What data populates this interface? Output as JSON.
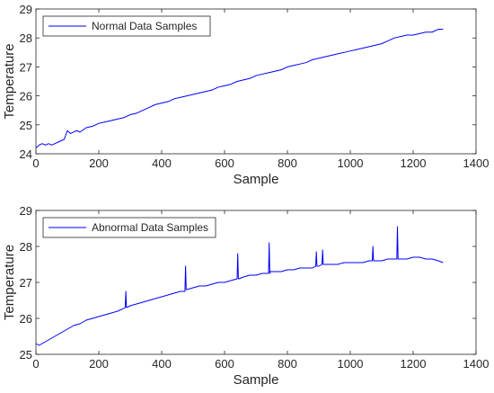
{
  "chart_data": [
    {
      "type": "line",
      "xlabel": "Sample",
      "ylabel": "Temperature",
      "xlim": [
        0,
        1400
      ],
      "ylim": [
        24,
        29
      ],
      "xticks": [
        "0",
        "200",
        "400",
        "600",
        "800",
        "1000",
        "1200",
        "1400"
      ],
      "yticks": [
        "24",
        "25",
        "26",
        "27",
        "28",
        "29"
      ],
      "grid": false,
      "legend": "top-left",
      "series": [
        {
          "name": "Normal Data Samples",
          "color": "#0000ff",
          "x": [
            0,
            10,
            20,
            30,
            40,
            50,
            60,
            70,
            80,
            90,
            100,
            110,
            120,
            130,
            140,
            160,
            180,
            200,
            220,
            240,
            260,
            280,
            300,
            320,
            340,
            360,
            380,
            400,
            420,
            440,
            460,
            480,
            500,
            520,
            540,
            560,
            580,
            600,
            620,
            640,
            660,
            680,
            700,
            720,
            740,
            760,
            780,
            800,
            820,
            840,
            860,
            880,
            900,
            920,
            940,
            960,
            980,
            1000,
            1020,
            1040,
            1060,
            1080,
            1100,
            1120,
            1140,
            1160,
            1180,
            1200,
            1220,
            1240,
            1260,
            1280,
            1295
          ],
          "y": [
            24.2,
            24.3,
            24.35,
            24.3,
            24.35,
            24.3,
            24.35,
            24.4,
            24.45,
            24.5,
            24.8,
            24.7,
            24.75,
            24.8,
            24.75,
            24.9,
            24.95,
            25.05,
            25.1,
            25.15,
            25.2,
            25.25,
            25.35,
            25.4,
            25.5,
            25.6,
            25.7,
            25.75,
            25.8,
            25.9,
            25.95,
            26.0,
            26.05,
            26.1,
            26.15,
            26.2,
            26.3,
            26.35,
            26.4,
            26.5,
            26.55,
            26.6,
            26.7,
            26.75,
            26.8,
            26.85,
            26.9,
            27.0,
            27.05,
            27.1,
            27.15,
            27.25,
            27.3,
            27.35,
            27.4,
            27.45,
            27.5,
            27.55,
            27.6,
            27.65,
            27.7,
            27.75,
            27.8,
            27.9,
            28.0,
            28.05,
            28.1,
            28.1,
            28.15,
            28.2,
            28.2,
            28.3,
            28.3
          ]
        }
      ]
    },
    {
      "type": "line",
      "xlabel": "Sample",
      "ylabel": "Temperature",
      "xlim": [
        0,
        1400
      ],
      "ylim": [
        25,
        29
      ],
      "xticks": [
        "0",
        "200",
        "400",
        "600",
        "800",
        "1000",
        "1200",
        "1400"
      ],
      "yticks": [
        "25",
        "26",
        "27",
        "28",
        "29"
      ],
      "grid": false,
      "legend": "top-left",
      "series": [
        {
          "name": "Abnormal Data Samples",
          "color": "#0000ff",
          "x": [
            0,
            10,
            20,
            30,
            40,
            50,
            60,
            80,
            100,
            120,
            140,
            160,
            180,
            200,
            220,
            240,
            260,
            280,
            284,
            286,
            288,
            300,
            320,
            340,
            360,
            380,
            400,
            420,
            440,
            460,
            474,
            476,
            478,
            480,
            500,
            520,
            540,
            560,
            580,
            600,
            620,
            640,
            642,
            644,
            646,
            660,
            680,
            700,
            720,
            740,
            742,
            744,
            746,
            760,
            780,
            800,
            820,
            840,
            860,
            880,
            890,
            892,
            894,
            900,
            910,
            912,
            914,
            920,
            940,
            960,
            980,
            1000,
            1020,
            1040,
            1060,
            1070,
            1072,
            1074,
            1080,
            1100,
            1120,
            1140,
            1148,
            1150,
            1152,
            1160,
            1180,
            1200,
            1220,
            1240,
            1260,
            1280,
            1295
          ],
          "y": [
            25.3,
            25.25,
            25.3,
            25.35,
            25.4,
            25.45,
            25.5,
            25.6,
            25.7,
            25.8,
            25.85,
            25.95,
            26.0,
            26.05,
            26.1,
            26.15,
            26.2,
            26.28,
            26.3,
            26.75,
            26.3,
            26.35,
            26.4,
            26.45,
            26.5,
            26.55,
            26.6,
            26.65,
            26.7,
            26.75,
            26.75,
            27.45,
            26.8,
            26.8,
            26.85,
            26.9,
            26.9,
            26.95,
            27.0,
            27.0,
            27.05,
            27.1,
            27.8,
            27.1,
            27.1,
            27.15,
            27.2,
            27.2,
            27.25,
            27.25,
            28.1,
            27.25,
            27.3,
            27.3,
            27.3,
            27.35,
            27.35,
            27.4,
            27.4,
            27.4,
            27.45,
            27.85,
            27.45,
            27.45,
            27.5,
            27.9,
            27.5,
            27.5,
            27.5,
            27.5,
            27.55,
            27.55,
            27.55,
            27.55,
            27.6,
            27.6,
            28.0,
            27.6,
            27.6,
            27.6,
            27.65,
            27.65,
            27.65,
            28.55,
            27.65,
            27.65,
            27.65,
            27.7,
            27.7,
            27.65,
            27.65,
            27.6,
            27.55
          ]
        }
      ]
    }
  ]
}
